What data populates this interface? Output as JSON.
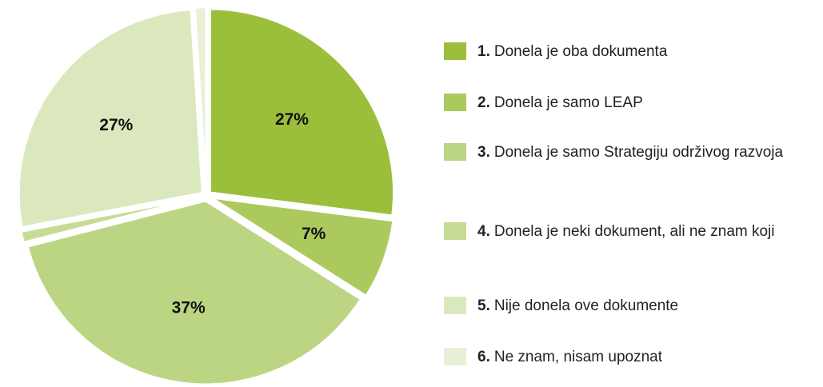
{
  "chart_data": {
    "type": "pie",
    "categories": [
      "Donela je oba dokumenta",
      "Donela je samo LEAP",
      "Donela je samo Strategiju održivog razvoja",
      "Donela je neki dokument, ali ne znam koji",
      "Nije donela ove dokumente",
      "Ne znam, nisam upoznat"
    ],
    "legend_numbers": [
      "1.",
      "2.",
      "3.",
      "4.",
      "5.",
      "6."
    ],
    "values": [
      27,
      7,
      37,
      1,
      27,
      1
    ],
    "value_labels": [
      "27%",
      "7%",
      "37%",
      null,
      "27%",
      null
    ],
    "colors": [
      "#9bbf3b",
      "#abc95d",
      "#bcd583",
      "#c6dc95",
      "#dbe8bd",
      "#e8f0d5"
    ]
  }
}
